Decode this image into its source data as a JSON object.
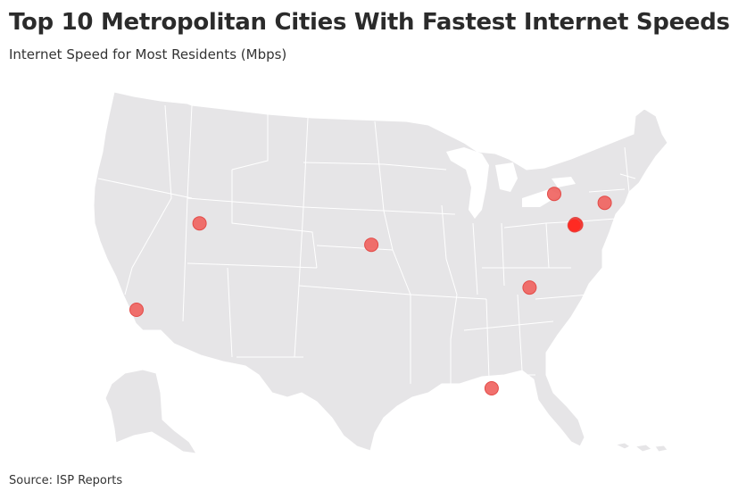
{
  "header": {
    "title": "Top 10 Metropolitan Cities With Fastest Internet Speeds",
    "subtitle": "Internet Speed for Most Residents (Mbps)"
  },
  "footer": {
    "source": "Source: ISP Reports"
  },
  "colors": {
    "land": "#e6e5e7",
    "border": "#ffffff",
    "marker": "#f0605d",
    "marker_strong": "#ff2a22"
  },
  "chart_data": {
    "type": "map",
    "cities": [
      {
        "lat": 34.05,
        "lon": -118.24
      },
      {
        "lat": 40.76,
        "lon": -111.89
      },
      {
        "lat": 39.1,
        "lon": -94.58
      },
      {
        "lat": 43.05,
        "lon": -76.15
      },
      {
        "lat": 42.36,
        "lon": -71.06
      },
      {
        "lat": 40.71,
        "lon": -74.01
      },
      {
        "lat": 40.66,
        "lon": -73.94
      },
      {
        "lat": 40.6,
        "lon": -74.1
      },
      {
        "lat": 35.78,
        "lon": -78.64
      },
      {
        "lat": 27.95,
        "lon": -82.46
      }
    ]
  }
}
